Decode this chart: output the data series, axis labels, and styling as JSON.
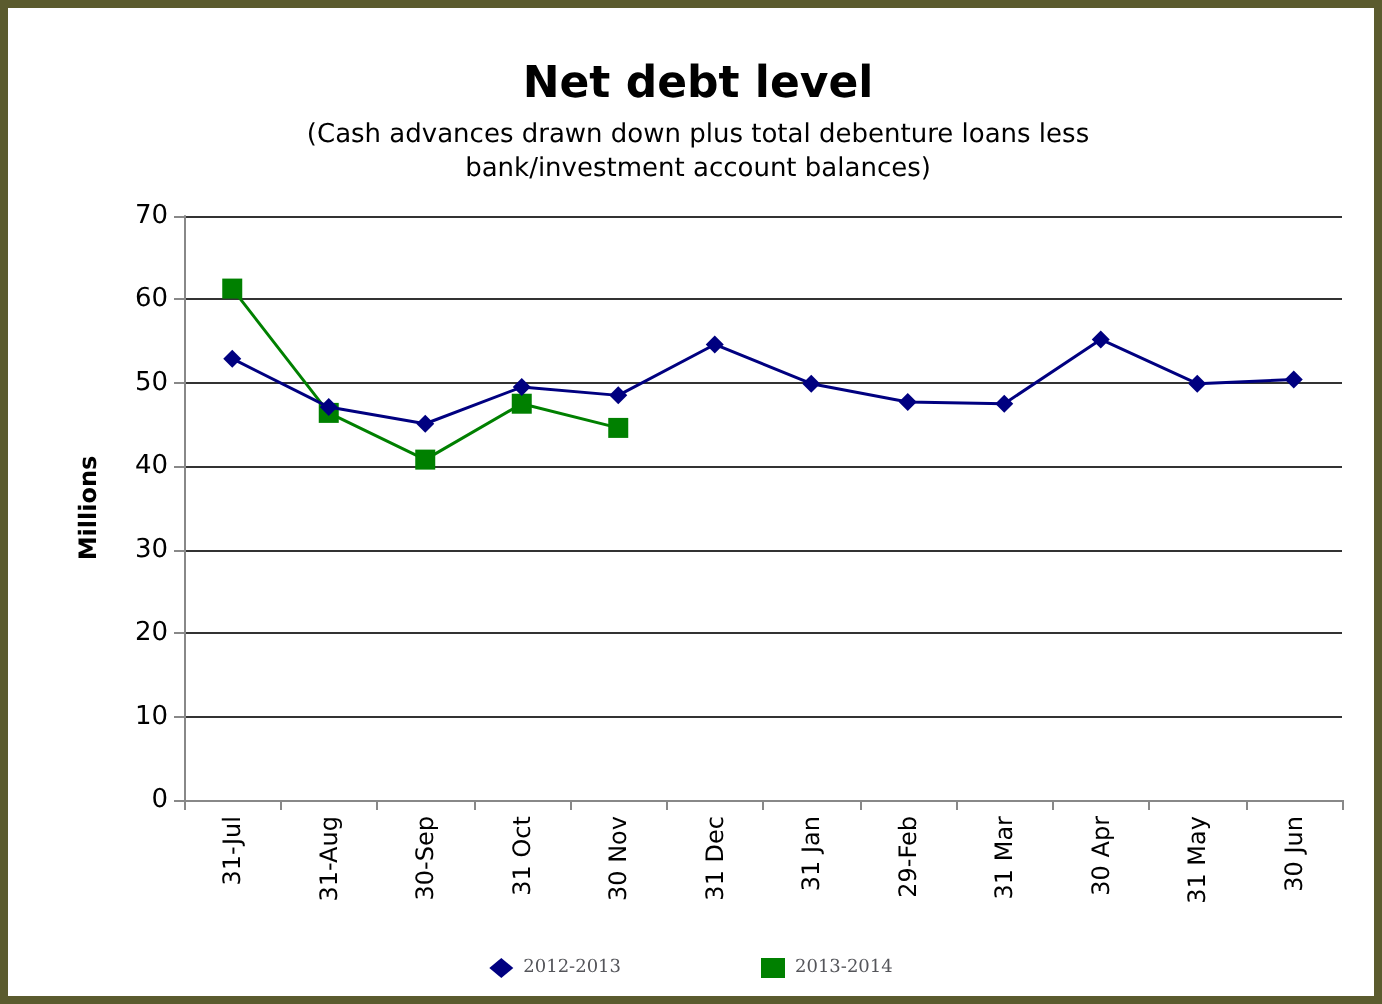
{
  "chart_data": {
    "type": "line",
    "title": "Net debt level",
    "subtitle": "(Cash advances drawn down plus total debenture loans less\nbank/investment account balances)",
    "ylabel": "Millions",
    "categories": [
      "31-Jul",
      "31-Aug",
      "30-Sep",
      "31 Oct",
      "30 Nov",
      "31 Dec",
      "31 Jan",
      "29-Feb",
      "31 Mar",
      "30 Apr",
      "31 May",
      "30 Jun"
    ],
    "series": [
      {
        "name": "2012-2013",
        "color": "#000080",
        "marker": "diamond",
        "values": [
          52.9,
          47.1,
          45.1,
          49.5,
          48.5,
          54.6,
          49.9,
          47.7,
          47.5,
          55.2,
          49.9,
          50.4
        ]
      },
      {
        "name": "2013-2014",
        "color": "#008000",
        "marker": "square",
        "values": [
          61.3,
          46.4,
          40.8,
          47.5,
          44.6,
          null,
          null,
          null,
          null,
          null,
          null,
          null
        ]
      }
    ],
    "ylim": [
      0,
      70
    ],
    "yticks": [
      0,
      10,
      20,
      30,
      40,
      50,
      60,
      70
    ],
    "grid": "y",
    "legend": "bottom"
  }
}
